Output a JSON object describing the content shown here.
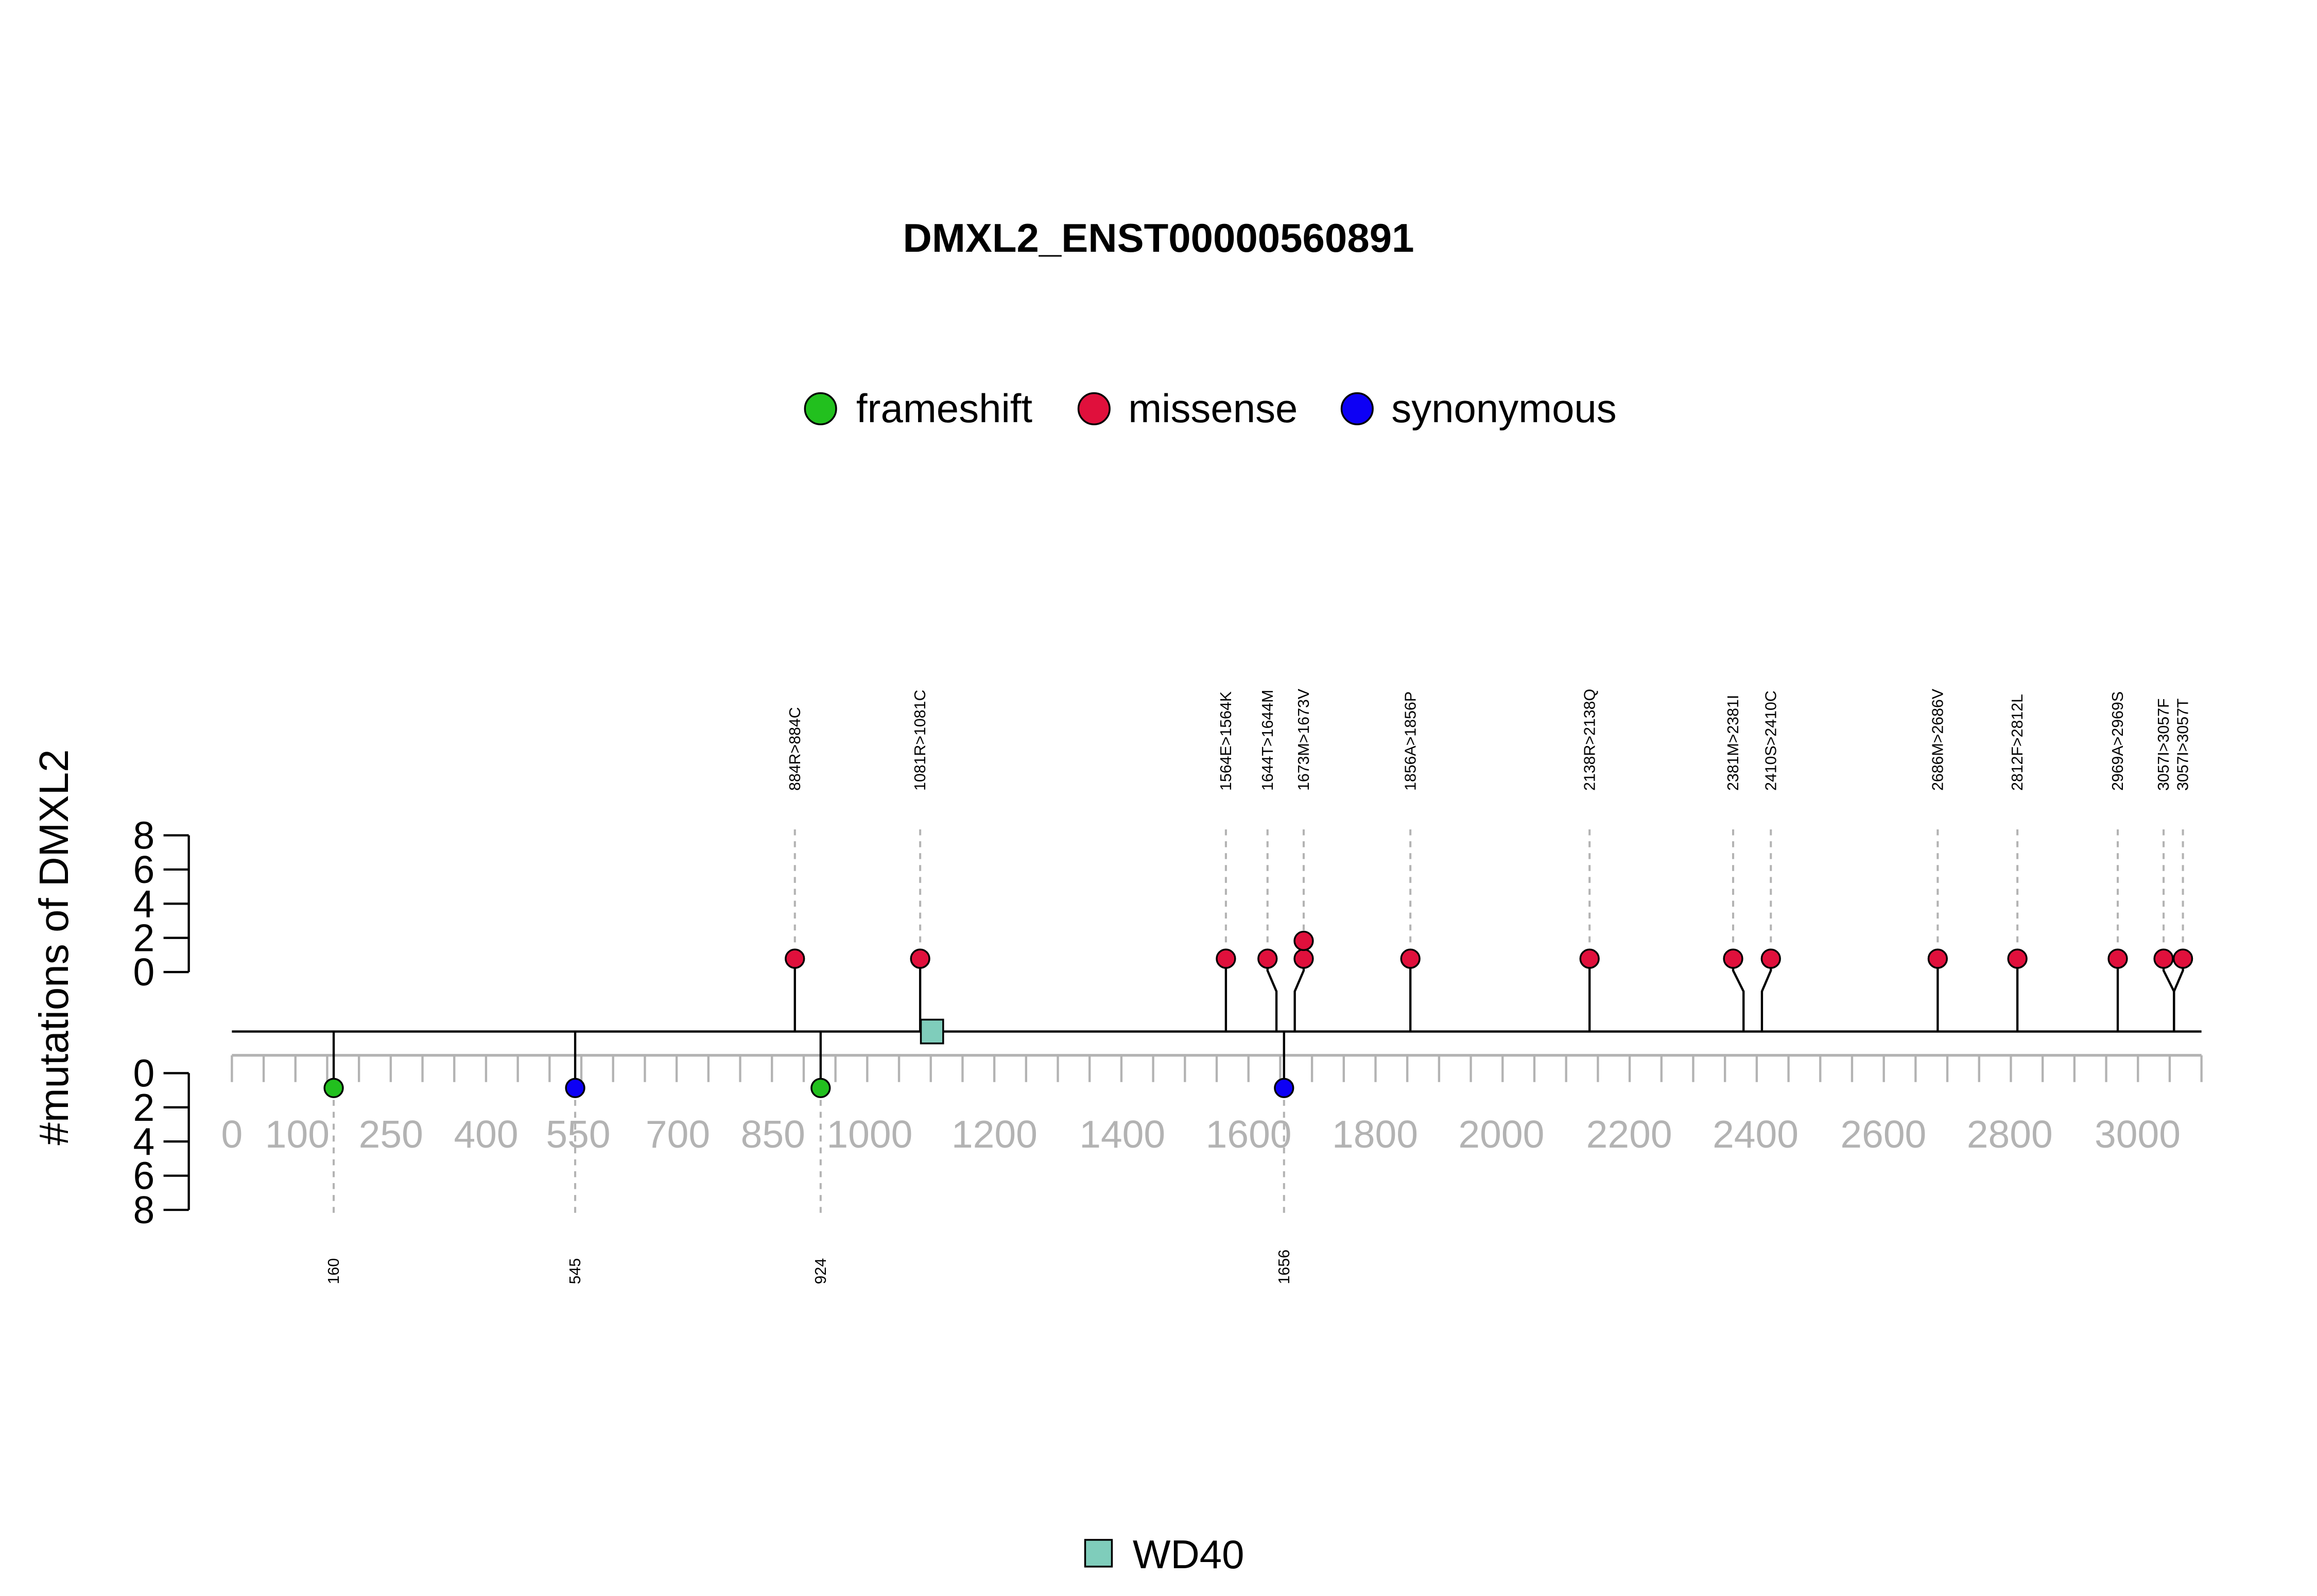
{
  "chart_data": {
    "type": "lollipop",
    "title": "DMXL2_ENST00000560891",
    "ylabel": "#mutations of DMXL2",
    "legend": [
      {
        "name": "frameshift",
        "color": "#22c01e"
      },
      {
        "name": "missense",
        "color": "#e0103c"
      },
      {
        "name": "synonymous",
        "color": "#0d00f5"
      }
    ],
    "x_ticks": [
      "0",
      "100",
      "250",
      "400",
      "550",
      "700",
      "850",
      "1000",
      "1200",
      "1400",
      "1600",
      "1800",
      "2000",
      "2200",
      "2400",
      "2600",
      "2800",
      "3000"
    ],
    "y_ticks": [
      "0",
      "2",
      "4",
      "6",
      "8"
    ],
    "ylim": [
      0,
      8
    ],
    "xlim": [
      0,
      3100
    ],
    "domains": [
      {
        "name": "WD40",
        "color": "#7fcdbb",
        "position": 1100
      }
    ],
    "mutations_top": [
      {
        "label": "884R>884C",
        "position": 884,
        "count": 1,
        "type": "missense"
      },
      {
        "label": "1081R>1081C",
        "position": 1081,
        "count": 1,
        "type": "missense"
      },
      {
        "label": "1564E>1564K",
        "position": 1564,
        "count": 1,
        "type": "missense"
      },
      {
        "label": "1644T>1644M",
        "position": 1644,
        "count": 1,
        "type": "missense"
      },
      {
        "label": "1673M>1673V",
        "position": 1673,
        "count": 2,
        "type": "missense"
      },
      {
        "label": "1856A>1856P",
        "position": 1856,
        "count": 1,
        "type": "missense"
      },
      {
        "label": "2138R>2138Q",
        "position": 2138,
        "count": 1,
        "type": "missense"
      },
      {
        "label": "2381M>2381I",
        "position": 2381,
        "count": 1,
        "type": "missense"
      },
      {
        "label": "2410S>2410C",
        "position": 2410,
        "count": 1,
        "type": "missense"
      },
      {
        "label": "2686M>2686V",
        "position": 2686,
        "count": 1,
        "type": "missense"
      },
      {
        "label": "2812F>2812L",
        "position": 2812,
        "count": 1,
        "type": "missense"
      },
      {
        "label": "2969A>2969S",
        "position": 2969,
        "count": 1,
        "type": "missense"
      },
      {
        "label": "3057I>3057F",
        "position": 3057,
        "count": 1,
        "type": "missense"
      },
      {
        "label": "3057I>3057T",
        "position": 3057,
        "count": 1,
        "type": "missense"
      }
    ],
    "mutations_bottom": [
      {
        "label": "160",
        "position": 160,
        "count": 1,
        "type": "frameshift"
      },
      {
        "label": "545",
        "position": 545,
        "count": 1,
        "type": "synonymous"
      },
      {
        "label": "924",
        "position": 924,
        "count": 1,
        "type": "frameshift"
      },
      {
        "label": "1656",
        "position": 1656,
        "count": 1,
        "type": "synonymous"
      }
    ]
  }
}
